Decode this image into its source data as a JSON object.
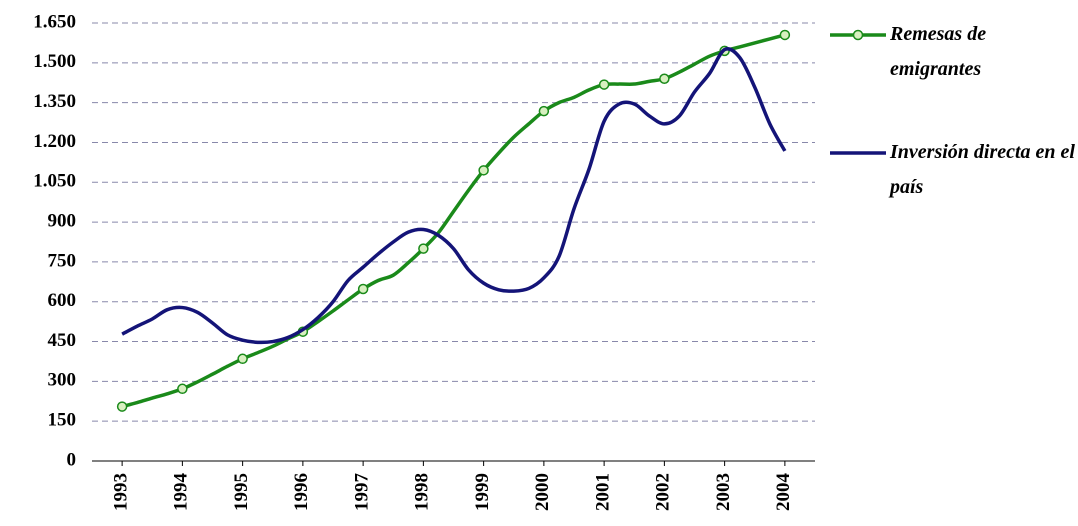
{
  "chart_data": {
    "type": "line",
    "x": [
      1993,
      1993.25,
      1993.5,
      1993.75,
      1994,
      1994.25,
      1994.5,
      1994.75,
      1995,
      1995.25,
      1995.5,
      1995.75,
      1996,
      1996.25,
      1996.5,
      1996.75,
      1997,
      1997.25,
      1997.5,
      1997.75,
      1998,
      1998.25,
      1998.5,
      1998.75,
      1999,
      1999.25,
      1999.5,
      1999.75,
      2000,
      2000.25,
      2000.5,
      2000.75,
      2001,
      2001.25,
      2001.5,
      2001.75,
      2002,
      2002.25,
      2002.5,
      2002.75,
      2003,
      2003.25,
      2003.5,
      2003.75,
      2004
    ],
    "series": [
      {
        "name": "Remesas de emigrantes",
        "color": "#1a8a1a",
        "markers": true,
        "values": [
          205,
          220,
          237,
          253,
          272,
          298,
          327,
          357,
          385,
          408,
          432,
          460,
          487,
          525,
          565,
          607,
          648,
          680,
          700,
          747,
          800,
          860,
          940,
          1020,
          1095,
          1160,
          1220,
          1270,
          1318,
          1350,
          1370,
          1398,
          1418,
          1420,
          1420,
          1430,
          1440,
          1465,
          1495,
          1525,
          1545,
          1560,
          1575,
          1590,
          1605
        ]
      },
      {
        "name": "Inversión directa en el país",
        "color": "#141478",
        "markers": false,
        "values": [
          478,
          508,
          535,
          570,
          578,
          560,
          520,
          475,
          455,
          447,
          450,
          465,
          495,
          540,
          600,
          680,
          730,
          780,
          825,
          862,
          872,
          850,
          800,
          720,
          670,
          645,
          640,
          650,
          690,
          770,
          950,
          1100,
          1280,
          1345,
          1345,
          1300,
          1270,
          1300,
          1390,
          1460,
          1550,
          1520,
          1408,
          1270,
          1168
        ]
      }
    ],
    "xlim": [
      1992.5,
      2004.5
    ],
    "xticks": [
      1993,
      1994,
      1995,
      1996,
      1997,
      1998,
      1999,
      2000,
      2001,
      2002,
      2003,
      2004
    ],
    "ylim": [
      0,
      1650
    ],
    "yticks": [
      0,
      150,
      300,
      {
        "value": 450,
        "label": "450"
      },
      600,
      750,
      900,
      {
        "value": 1050,
        "label": "1.050"
      },
      {
        "value": 1200,
        "label": "1.200"
      },
      {
        "value": 1350,
        "label": "1.350"
      },
      {
        "value": 1500,
        "label": "1.500"
      },
      {
        "value": 1650,
        "label": "1.650"
      }
    ],
    "grid": true,
    "legend": "right"
  }
}
